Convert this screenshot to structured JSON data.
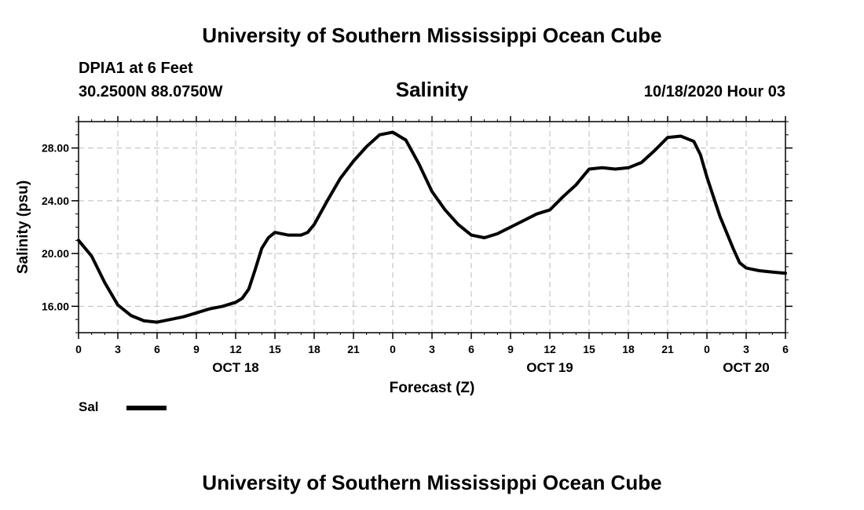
{
  "header": {
    "title": "University of Southern Mississippi Ocean Cube",
    "station": "DPIA1 at 6 Feet",
    "coordinates": "30.2500N 88.0750W",
    "parameter": "Salinity",
    "datetime": "10/18/2020 Hour 03"
  },
  "footer": {
    "title": "University of Southern Mississippi Ocean Cube"
  },
  "legend": {
    "label": "Sal",
    "color": "#000000"
  },
  "chart_data": {
    "type": "line",
    "title": "Salinity",
    "xlabel": "Forecast (Z)",
    "ylabel": "Salinity (psu)",
    "x_range": [
      0,
      54
    ],
    "ylim": [
      14,
      30
    ],
    "y_ticks": [
      16,
      20,
      24,
      28
    ],
    "y_tick_labels": [
      "16.00",
      "20.00",
      "24.00",
      "28.00"
    ],
    "x_ticks": [
      0,
      3,
      6,
      9,
      12,
      15,
      18,
      21,
      24,
      27,
      30,
      33,
      36,
      39,
      42,
      45,
      48,
      51,
      54
    ],
    "x_tick_labels": [
      "0",
      "3",
      "6",
      "9",
      "12",
      "15",
      "18",
      "21",
      "0",
      "3",
      "6",
      "9",
      "12",
      "15",
      "18",
      "21",
      "0",
      "3",
      "6"
    ],
    "day_labels": [
      {
        "x": 12,
        "label": "OCT 18"
      },
      {
        "x": 36,
        "label": "OCT 19"
      },
      {
        "x": 51,
        "label": "OCT 20"
      }
    ],
    "grid": true,
    "series": [
      {
        "name": "Sal",
        "x": [
          0,
          1,
          2,
          3,
          4,
          5,
          6,
          7,
          8,
          9,
          10,
          11,
          12,
          12.5,
          13,
          13.5,
          14,
          14.5,
          15,
          16,
          17,
          17.5,
          18,
          19,
          20,
          21,
          22,
          23,
          24,
          25,
          26,
          27,
          28,
          29,
          30,
          31,
          32,
          33,
          34,
          35,
          36,
          37,
          38,
          39,
          40,
          41,
          42,
          43,
          44,
          45,
          46,
          47,
          47.5,
          48,
          48.5,
          49,
          50,
          50.5,
          51,
          51.5,
          52,
          53,
          54
        ],
        "values": [
          21.0,
          19.8,
          17.8,
          16.1,
          15.3,
          14.9,
          14.8,
          15.0,
          15.2,
          15.5,
          15.8,
          16.0,
          16.3,
          16.6,
          17.3,
          18.8,
          20.4,
          21.2,
          21.6,
          21.4,
          21.4,
          21.6,
          22.2,
          24.0,
          25.7,
          27.0,
          28.1,
          29.0,
          29.2,
          28.6,
          26.8,
          24.7,
          23.3,
          22.2,
          21.4,
          21.2,
          21.5,
          22.0,
          22.5,
          23.0,
          23.3,
          24.3,
          25.2,
          26.4,
          26.5,
          26.4,
          26.5,
          26.9,
          27.8,
          28.8,
          28.9,
          28.5,
          27.5,
          25.8,
          24.3,
          22.8,
          20.4,
          19.3,
          18.9,
          18.8,
          18.7,
          18.6,
          18.5
        ]
      }
    ]
  }
}
